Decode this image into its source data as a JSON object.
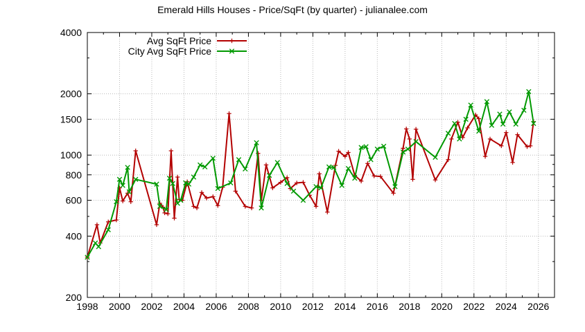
{
  "chart_data": {
    "type": "line",
    "title": "Emerald Hills Houses - Price/SqFt (by quarter) - julianalee.com",
    "xlabel": "",
    "ylabel": "",
    "xlim": [
      1998,
      2027
    ],
    "ylim": [
      200,
      4000
    ],
    "yscale": "log",
    "grid": true,
    "legend_position": "top-left",
    "x_ticks": [
      "1998",
      "2000",
      "2002",
      "2004",
      "2006",
      "2008",
      "2010",
      "2012",
      "2014",
      "2016",
      "2018",
      "2020",
      "2022",
      "2024",
      "2026"
    ],
    "y_ticks": [
      "200",
      "400",
      "600",
      "800",
      "1000",
      "1500",
      "2000",
      "4000"
    ],
    "series": [
      {
        "name": "Avg SqFt Price",
        "color": "#b30000",
        "marker": "plus",
        "points": [
          [
            1998.0,
            315
          ],
          [
            1998.6,
            455
          ],
          [
            1998.8,
            370
          ],
          [
            1999.3,
            470
          ],
          [
            1999.8,
            480
          ],
          [
            2000.0,
            690
          ],
          [
            2000.2,
            595
          ],
          [
            2000.5,
            650
          ],
          [
            2000.7,
            590
          ],
          [
            2001.0,
            1050
          ],
          [
            2002.3,
            455
          ],
          [
            2002.5,
            580
          ],
          [
            2002.7,
            555
          ],
          [
            2002.8,
            520
          ],
          [
            2003.0,
            515
          ],
          [
            2003.2,
            1050
          ],
          [
            2003.4,
            490
          ],
          [
            2003.6,
            780
          ],
          [
            2003.7,
            605
          ],
          [
            2003.9,
            600
          ],
          [
            2004.2,
            740
          ],
          [
            2004.6,
            560
          ],
          [
            2004.8,
            550
          ],
          [
            2005.1,
            655
          ],
          [
            2005.4,
            615
          ],
          [
            2005.8,
            625
          ],
          [
            2006.1,
            565
          ],
          [
            2006.4,
            695
          ],
          [
            2006.8,
            1600
          ],
          [
            2007.2,
            665
          ],
          [
            2007.8,
            560
          ],
          [
            2008.2,
            550
          ],
          [
            2008.6,
            1020
          ],
          [
            2008.8,
            600
          ],
          [
            2009.1,
            895
          ],
          [
            2009.5,
            690
          ],
          [
            2010.0,
            735
          ],
          [
            2010.4,
            775
          ],
          [
            2010.6,
            685
          ],
          [
            2011.0,
            730
          ],
          [
            2011.4,
            735
          ],
          [
            2011.8,
            635
          ],
          [
            2012.2,
            560
          ],
          [
            2012.4,
            810
          ],
          [
            2012.9,
            525
          ],
          [
            2013.4,
            890
          ],
          [
            2013.6,
            1045
          ],
          [
            2014.0,
            985
          ],
          [
            2014.2,
            1030
          ],
          [
            2014.6,
            795
          ],
          [
            2015.0,
            745
          ],
          [
            2015.4,
            910
          ],
          [
            2015.8,
            790
          ],
          [
            2016.2,
            785
          ],
          [
            2017.0,
            650
          ],
          [
            2017.6,
            1080
          ],
          [
            2017.8,
            1345
          ],
          [
            2018.0,
            1200
          ],
          [
            2018.2,
            760
          ],
          [
            2018.4,
            1340
          ],
          [
            2019.6,
            755
          ],
          [
            2020.4,
            950
          ],
          [
            2020.6,
            1200
          ],
          [
            2021.0,
            1450
          ],
          [
            2021.3,
            1220
          ],
          [
            2021.6,
            1360
          ],
          [
            2022.1,
            1575
          ],
          [
            2022.3,
            1510
          ],
          [
            2022.7,
            985
          ],
          [
            2023.0,
            1200
          ],
          [
            2023.7,
            1110
          ],
          [
            2024.0,
            1290
          ],
          [
            2024.4,
            920
          ],
          [
            2024.7,
            1260
          ],
          [
            2025.3,
            1100
          ],
          [
            2025.5,
            1110
          ],
          [
            2025.7,
            1460
          ]
        ]
      },
      {
        "name": "City Avg SqFt Price",
        "color": "#009900",
        "marker": "cross",
        "points": [
          [
            1998.0,
            315
          ],
          [
            1998.5,
            370
          ],
          [
            1998.7,
            355
          ],
          [
            1999.3,
            430
          ],
          [
            1999.8,
            590
          ],
          [
            2000.0,
            760
          ],
          [
            2000.2,
            710
          ],
          [
            2000.5,
            870
          ],
          [
            2000.6,
            660
          ],
          [
            2001.0,
            760
          ],
          [
            2002.3,
            720
          ],
          [
            2002.5,
            560
          ],
          [
            2002.9,
            540
          ],
          [
            2003.1,
            770
          ],
          [
            2003.3,
            725
          ],
          [
            2003.6,
            580
          ],
          [
            2003.8,
            600
          ],
          [
            2004.1,
            730
          ],
          [
            2004.3,
            720
          ],
          [
            2004.6,
            780
          ],
          [
            2005.0,
            895
          ],
          [
            2005.3,
            875
          ],
          [
            2005.8,
            965
          ],
          [
            2006.1,
            685
          ],
          [
            2006.9,
            730
          ],
          [
            2007.4,
            950
          ],
          [
            2007.8,
            855
          ],
          [
            2008.5,
            1150
          ],
          [
            2008.8,
            550
          ],
          [
            2009.3,
            795
          ],
          [
            2009.8,
            920
          ],
          [
            2010.4,
            725
          ],
          [
            2010.8,
            665
          ],
          [
            2011.4,
            600
          ],
          [
            2012.2,
            700
          ],
          [
            2012.5,
            690
          ],
          [
            2013.0,
            875
          ],
          [
            2013.3,
            870
          ],
          [
            2013.8,
            710
          ],
          [
            2014.2,
            860
          ],
          [
            2014.6,
            770
          ],
          [
            2015.0,
            1090
          ],
          [
            2015.3,
            1100
          ],
          [
            2015.6,
            950
          ],
          [
            2016.0,
            1070
          ],
          [
            2016.4,
            1105
          ],
          [
            2017.1,
            700
          ],
          [
            2017.6,
            1035
          ],
          [
            2017.9,
            1070
          ],
          [
            2018.4,
            1165
          ],
          [
            2019.6,
            975
          ],
          [
            2020.4,
            1280
          ],
          [
            2020.8,
            1430
          ],
          [
            2021.1,
            1200
          ],
          [
            2021.5,
            1500
          ],
          [
            2021.8,
            1760
          ],
          [
            2022.3,
            1310
          ],
          [
            2022.8,
            1830
          ],
          [
            2023.1,
            1400
          ],
          [
            2023.6,
            1590
          ],
          [
            2023.8,
            1420
          ],
          [
            2024.2,
            1630
          ],
          [
            2024.6,
            1420
          ],
          [
            2025.1,
            1660
          ],
          [
            2025.4,
            2050
          ],
          [
            2025.7,
            1430
          ]
        ]
      }
    ]
  }
}
